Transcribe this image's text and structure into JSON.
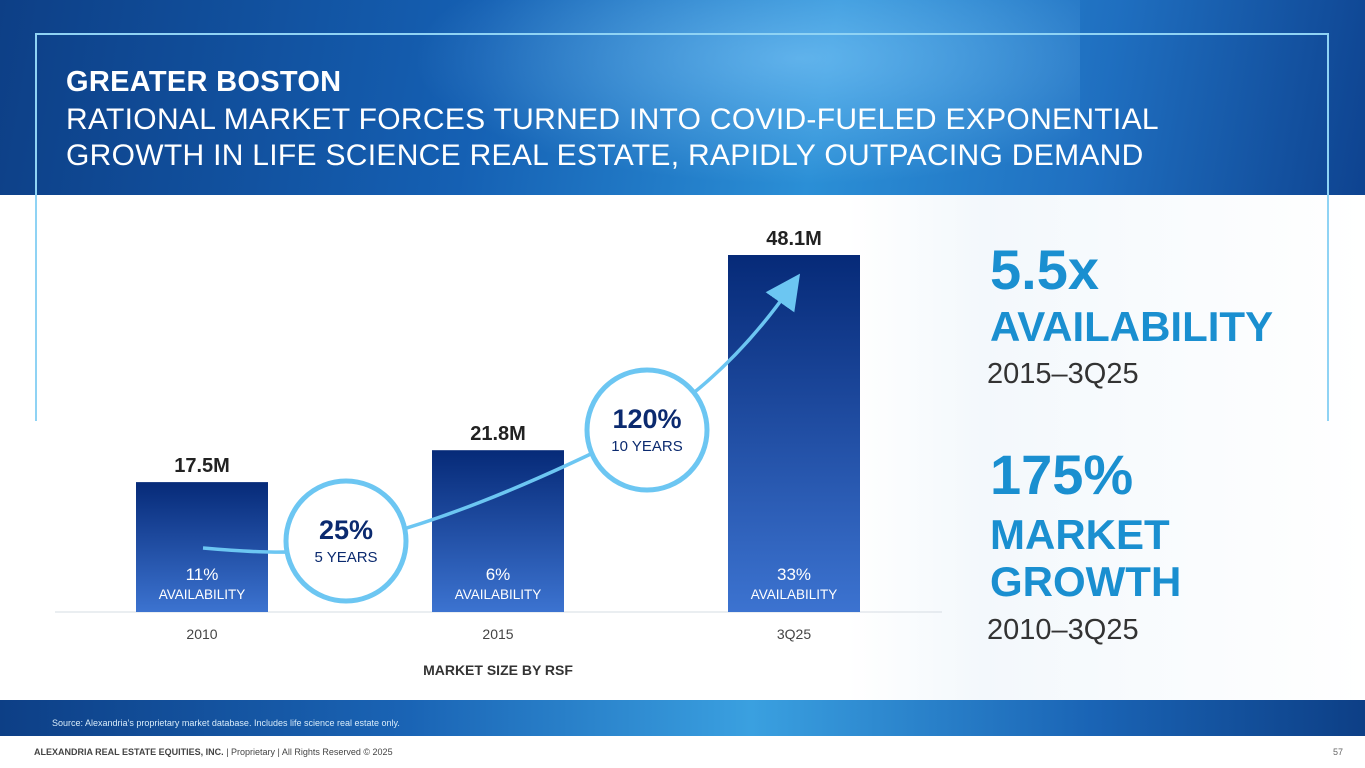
{
  "header": {
    "title": "GREATER BOSTON",
    "subtitle": "RATIONAL MARKET FORCES TURNED INTO COVID-FUELED EXPONENTIAL GROWTH IN LIFE SCIENCE REAL ESTATE, RAPIDLY OUTPACING DEMAND"
  },
  "chart_data": {
    "type": "bar",
    "title": "",
    "xlabel": "MARKET SIZE BY RSF",
    "ylabel": "",
    "categories": [
      "2010",
      "2015",
      "3Q25"
    ],
    "values": [
      17.5,
      21.8,
      48.1
    ],
    "ylim": [
      0,
      48.1
    ],
    "value_labels": [
      "17.5M",
      "21.8M",
      "48.1M"
    ],
    "availability_pct": [
      "11%",
      "6%",
      "33%"
    ],
    "availability_label": "AVAILABILITY",
    "growth_callouts": [
      {
        "pct": "25%",
        "period": "5 YEARS"
      },
      {
        "pct": "120%",
        "period": "10 YEARS"
      }
    ]
  },
  "stats": {
    "availability": {
      "value": "5.5x",
      "label": "AVAILABILITY",
      "range": "2015–3Q25"
    },
    "growth": {
      "value": "175%",
      "label_line1": "MARKET",
      "label_line2": "GROWTH",
      "range": "2010–3Q25"
    }
  },
  "footer": {
    "source": "Source: Alexandria’s proprietary market database. Includes life science real estate only.",
    "company": "ALEXANDRIA REAL ESTATE EQUITIES, INC.",
    "rights": " | Proprietary | All Rights Reserved © 2025",
    "page": "57"
  },
  "colors": {
    "bar_top": "#062a78",
    "bar_bottom": "#3c73d0",
    "accent": "#1a8fd0",
    "arrow": "#6cc6f2"
  }
}
